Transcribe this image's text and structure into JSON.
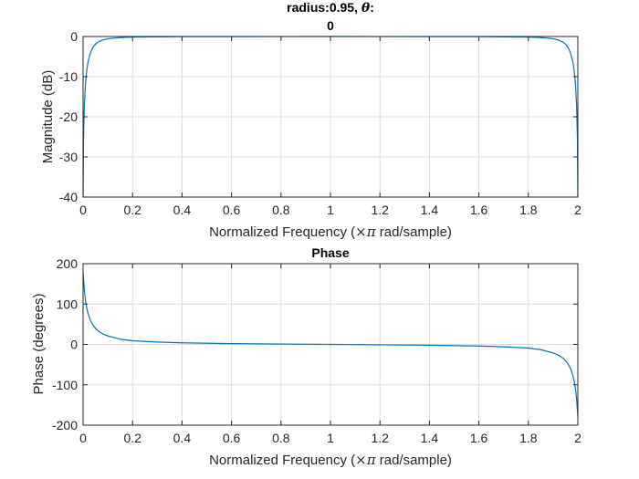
{
  "chart_data": [
    {
      "type": "line",
      "title_line1_prefix": "radius:0.95, ",
      "title_line1_symbol": "θ",
      "title_line1_suffix": ":",
      "title_line2": "0",
      "xlabel_prefix": "Normalized Frequency  (",
      "xlabel_symbol": "×π",
      "xlabel_suffix": " rad/sample)",
      "ylabel": "Magnitude (dB)",
      "xlim": [
        0,
        2
      ],
      "ylim": [
        -40,
        0
      ],
      "xticks": [
        0,
        0.2,
        0.4,
        0.6,
        0.8,
        1,
        1.2,
        1.4,
        1.6,
        1.8,
        2
      ],
      "yticks": [
        -40,
        -30,
        -20,
        -10,
        0
      ],
      "xtick_labels": [
        "0",
        "0.2",
        "0.4",
        "0.6",
        "0.8",
        "1",
        "1.2",
        "1.4",
        "1.6",
        "1.8",
        "2"
      ],
      "ytick_labels": [
        "-40",
        "-30",
        "-20",
        "-10",
        "0"
      ],
      "grid": true,
      "color": "#0072BD",
      "series": [
        {
          "x": [
            0,
            0.002,
            0.005,
            0.01,
            0.015,
            0.02,
            0.03,
            0.04,
            0.05,
            0.06,
            0.08,
            0.1,
            0.15,
            0.2,
            0.4,
            0.6,
            0.8,
            1,
            1.2,
            1.4,
            1.6,
            1.8,
            1.85,
            1.9,
            1.92,
            1.94,
            1.95,
            1.96,
            1.97,
            1.98,
            1.985,
            1.99,
            1.995,
            1.998,
            2
          ],
          "y": [
            -40,
            -24.7,
            -17.2,
            -11.5,
            -8.4,
            -6.4,
            -4.0,
            -2.7,
            -1.9,
            -1.4,
            -0.85,
            -0.56,
            -0.26,
            -0.15,
            -0.04,
            -0.02,
            -0.01,
            0,
            -0.01,
            -0.02,
            -0.04,
            -0.15,
            -0.26,
            -0.56,
            -0.85,
            -1.4,
            -1.9,
            -2.7,
            -4.0,
            -6.4,
            -8.4,
            -11.5,
            -17.2,
            -24.7,
            -40
          ]
        }
      ]
    },
    {
      "type": "line",
      "title": "Phase",
      "xlabel_prefix": "Normalized Frequency  (",
      "xlabel_symbol": "×π",
      "xlabel_suffix": " rad/sample)",
      "ylabel": "Phase (degrees)",
      "xlim": [
        0,
        2
      ],
      "ylim": [
        -200,
        200
      ],
      "xticks": [
        0,
        0.2,
        0.4,
        0.6,
        0.8,
        1,
        1.2,
        1.4,
        1.6,
        1.8,
        2
      ],
      "yticks": [
        -200,
        -100,
        0,
        100,
        200
      ],
      "xtick_labels": [
        "0",
        "0.2",
        "0.4",
        "0.6",
        "0.8",
        "1",
        "1.2",
        "1.4",
        "1.6",
        "1.8",
        "2"
      ],
      "ytick_labels": [
        "-200",
        "-100",
        "0",
        "100",
        "200"
      ],
      "grid": true,
      "color": "#0072BD",
      "series": [
        {
          "x": [
            0,
            0.002,
            0.005,
            0.01,
            0.015,
            0.02,
            0.03,
            0.04,
            0.05,
            0.06,
            0.08,
            0.1,
            0.15,
            0.2,
            0.3,
            0.4,
            0.6,
            0.8,
            1,
            1.2,
            1.4,
            1.6,
            1.7,
            1.8,
            1.85,
            1.9,
            1.92,
            1.94,
            1.95,
            1.96,
            1.97,
            1.98,
            1.985,
            1.99,
            1.995,
            1.998,
            2
          ],
          "y": [
            180,
            161,
            135,
            108,
            90,
            77,
            59,
            48,
            40,
            34,
            26,
            21,
            13,
            9,
            6,
            4,
            2,
            1,
            0,
            -1,
            -2,
            -4,
            -6,
            -9,
            -13,
            -21,
            -26,
            -34,
            -40,
            -48,
            -59,
            -77,
            -90,
            -108,
            -135,
            -161,
            -180
          ]
        }
      ]
    }
  ]
}
